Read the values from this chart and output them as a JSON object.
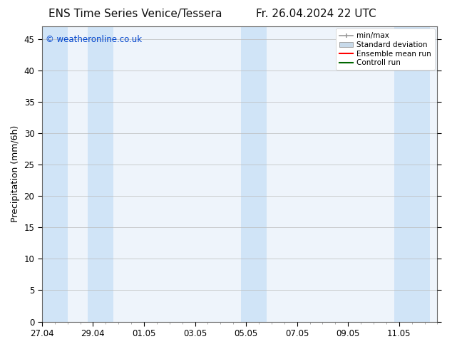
{
  "title_left": "ENS Time Series Venice/Tessera",
  "title_right": "Fr. 26.04.2024 22 UTC",
  "ylabel": "Precipitation (mm/6h)",
  "ylim": [
    0,
    47
  ],
  "yticks": [
    0,
    5,
    10,
    15,
    20,
    25,
    30,
    35,
    40,
    45
  ],
  "background_color": "#ffffff",
  "plot_bg_color": "#eef4fb",
  "watermark": "© weatheronline.co.uk",
  "watermark_color": "#0044cc",
  "x_ticks_labels": [
    "27.04",
    "29.04",
    "01.05",
    "03.05",
    "05.05",
    "07.05",
    "09.05",
    "11.05"
  ],
  "x_ticks_pos": [
    0,
    2,
    4,
    6,
    8,
    10,
    12,
    14
  ],
  "shade_bands": [
    [
      0.0,
      1.0
    ],
    [
      1.8,
      2.8
    ],
    [
      7.8,
      8.8
    ],
    [
      13.8,
      15.2
    ]
  ],
  "shade_color": "#d0e4f7",
  "legend_labels": [
    "min/max",
    "Standard deviation",
    "Ensemble mean run",
    "Controll run"
  ],
  "minmax_color": "#999999",
  "std_color": "#c8daea",
  "mean_color": "#ff0000",
  "control_color": "#006600",
  "title_fontsize": 11,
  "tick_fontsize": 8.5,
  "label_fontsize": 9,
  "legend_fontsize": 7.5
}
